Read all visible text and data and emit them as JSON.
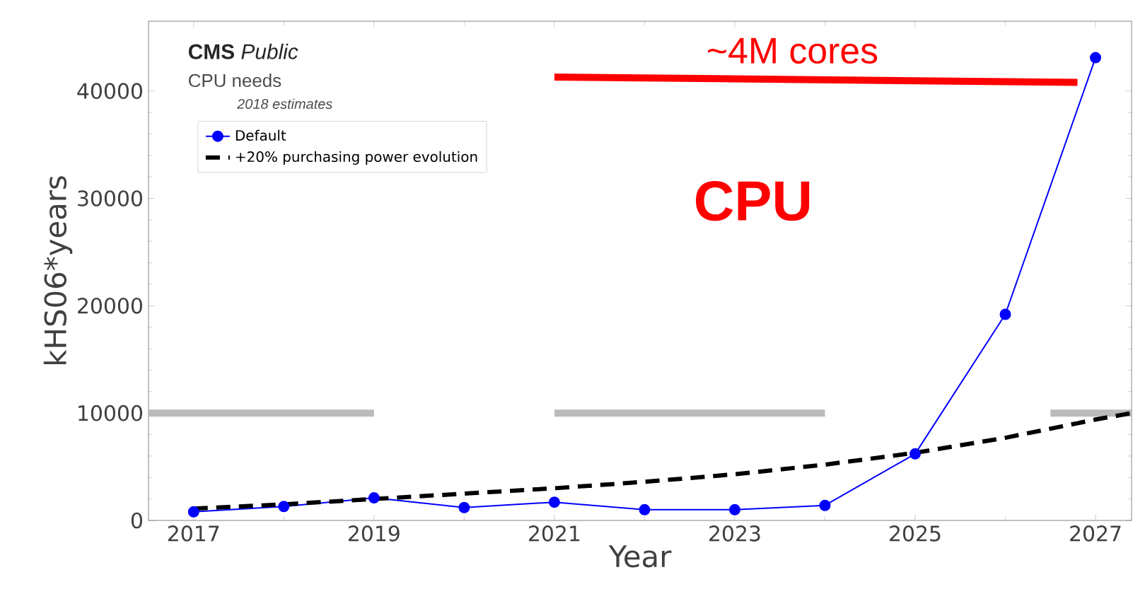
{
  "chart_data": {
    "type": "line",
    "title": "**CMS** *Public*",
    "subtitle": "CPU needs",
    "xlabel": "Year",
    "ylabel": "kHS06*years",
    "annotations": [
      "2018 estimates",
      "~4M cores",
      "CPU"
    ],
    "series": [
      {
        "color": "#bbbbbb",
        "marker": "none",
        "line_style": "solid",
        "x": [
          2016.5,
          2019,
          2020,
          2021,
          2024,
          2025,
          2026.5,
          2027.4
        ],
        "values": [
          10000,
          10000,
          null,
          10000,
          10000,
          null,
          10000,
          10000
        ]
      },
      {
        "name": "Default",
        "color": "#0000ff",
        "marker": "circle",
        "line_style": "solid",
        "x": [
          2017,
          2018,
          2019,
          2020,
          2021,
          2022,
          2023,
          2024,
          2025,
          2026,
          2027
        ],
        "values": [
          800,
          1300,
          2100,
          1200,
          1700,
          1000,
          1000,
          1400,
          6200,
          19200,
          43100
        ]
      },
      {
        "name": "+20% purchasing power evolution",
        "color": "#000000",
        "marker": "none",
        "line_style": "dashed",
        "x": [
          2017,
          2018,
          2019,
          2020,
          2021,
          2022,
          2023,
          2024,
          2025,
          2026,
          2027,
          2027.4
        ],
        "values": [
          1100,
          1500,
          2000,
          2500,
          3000,
          3600,
          4300,
          5200,
          6300,
          7700,
          9400,
          10000
        ]
      },
      {
        "color": "#ff0000",
        "marker": "none",
        "line_style": "solid",
        "x": [
          2021,
          2026.8
        ],
        "values": [
          41300,
          40800
        ]
      }
    ],
    "xlim": [
      2016.5,
      2027.4
    ],
    "ylim": [
      0,
      46500
    ],
    "xticks": [
      2017,
      2019,
      2021,
      2023,
      2025,
      2027
    ],
    "yticks": [
      0,
      10000,
      20000,
      30000,
      40000
    ],
    "grid": false,
    "legend": "top left"
  }
}
